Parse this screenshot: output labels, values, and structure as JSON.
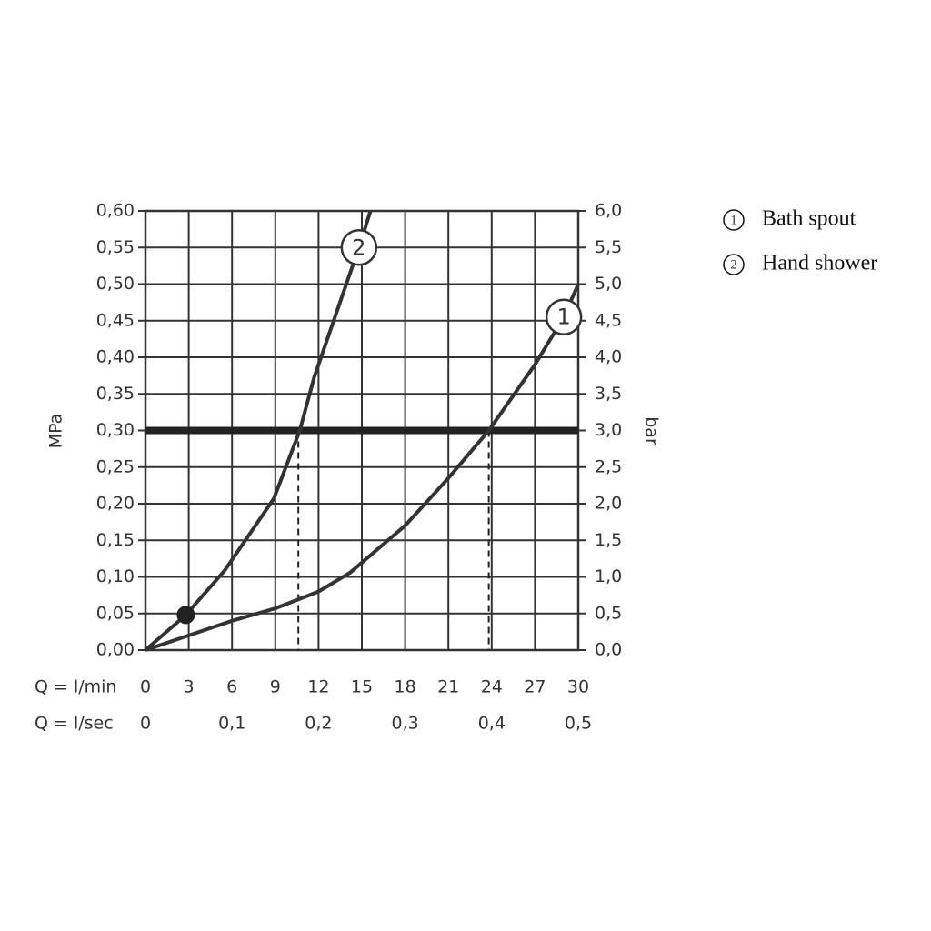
{
  "chart_data": {
    "type": "line",
    "y_label": "MPa",
    "y2_label": "bar",
    "x_label": "Q = l/min",
    "x2_label": "Q = l/sec",
    "xlim": [
      0,
      30
    ],
    "xticks": [
      0,
      3,
      6,
      9,
      12,
      15,
      18,
      21,
      24,
      27,
      30
    ],
    "x2lim": [
      0,
      0.5
    ],
    "x2ticks": [
      0,
      {
        "value": 0.1,
        "label": "0,1"
      },
      {
        "value": 0.2,
        "label": "0,2"
      },
      {
        "value": 0.3,
        "label": "0,3"
      },
      {
        "value": 0.4,
        "label": "0,4"
      },
      {
        "value": 0.5,
        "label": "0,5"
      }
    ],
    "ylim": [
      0,
      0.6
    ],
    "yticks": [
      {
        "value": 0,
        "label": "0,00"
      },
      {
        "value": 0.05,
        "label": "0,05"
      },
      {
        "value": 0.1,
        "label": "0,10"
      },
      {
        "value": 0.15,
        "label": "0,15"
      },
      {
        "value": 0.2,
        "label": "0,20"
      },
      {
        "value": 0.25,
        "label": "0,25"
      },
      {
        "value": 0.3,
        "label": "0,30"
      },
      {
        "value": 0.35,
        "label": "0,35"
      },
      {
        "value": 0.4,
        "label": "0,40"
      },
      {
        "value": 0.45,
        "label": "0,45"
      },
      {
        "value": 0.5,
        "label": "0,50"
      },
      {
        "value": 0.55,
        "label": "0,55"
      },
      {
        "value": 0.6,
        "label": "0,60"
      }
    ],
    "y2lim": [
      0,
      6
    ],
    "y2ticks": [
      {
        "value": 0,
        "label": "0,0"
      },
      {
        "value": 0.5,
        "label": "0,5"
      },
      {
        "value": 1,
        "label": "1,0"
      },
      {
        "value": 1.5,
        "label": "1,5"
      },
      {
        "value": 2,
        "label": "2,0"
      },
      {
        "value": 2.5,
        "label": "2,5"
      },
      {
        "value": 3,
        "label": "3,0"
      },
      {
        "value": 3.5,
        "label": "3,5"
      },
      {
        "value": 4,
        "label": "4,0"
      },
      {
        "value": 4.5,
        "label": "4,5"
      },
      {
        "value": 5,
        "label": "5,0"
      },
      {
        "value": 5.5,
        "label": "5,5"
      },
      {
        "value": 6,
        "label": "6,0"
      }
    ],
    "grid": true,
    "reference_line": 0.3,
    "drop_lines": [
      {
        "x": 10.6,
        "y": 0.3
      },
      {
        "x": 23.8,
        "y": 0.3
      }
    ],
    "operating_point": {
      "x": 2.8,
      "y": 0.048
    },
    "series": [
      {
        "name": "Bath spout",
        "label": "1",
        "color": "#333333",
        "x": [
          0,
          3,
          6,
          9,
          12,
          14.2,
          18,
          21,
          23.8,
          27,
          29,
          30
        ],
        "values": [
          0,
          0.02,
          0.04,
          0.057,
          0.08,
          0.106,
          0.17,
          0.235,
          0.3,
          0.39,
          0.455,
          0.5
        ]
      },
      {
        "name": "Hand shower",
        "label": "2",
        "color": "#333333",
        "x": [
          0,
          2.8,
          5.5,
          8.9,
          10.7,
          11.7,
          14.8,
          15.6
        ],
        "values": [
          0,
          0.048,
          0.109,
          0.207,
          0.3,
          0.373,
          0.55,
          0.6
        ]
      }
    ]
  }
}
